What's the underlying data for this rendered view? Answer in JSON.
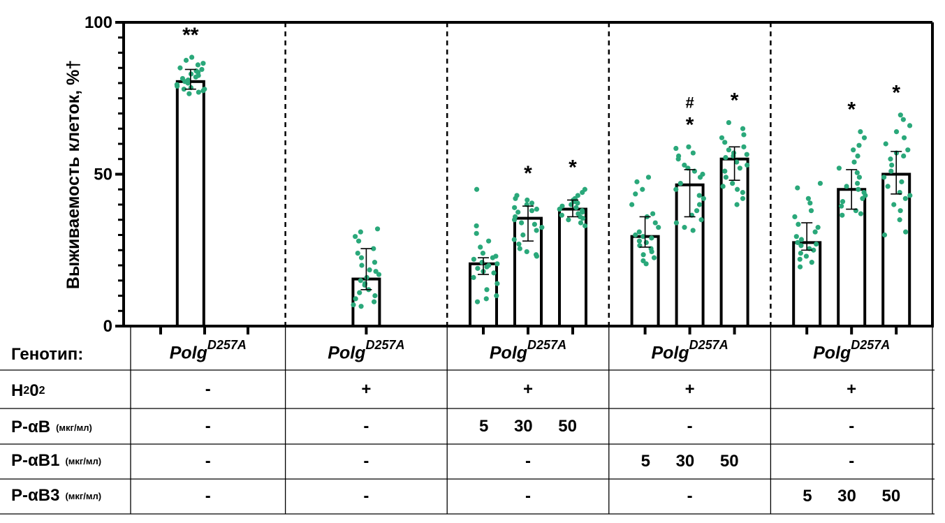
{
  "chart_data": {
    "type": "bar",
    "ylabel": "Выживаемость клеток, %†",
    "ylim": [
      0,
      100
    ],
    "yticks": [
      0,
      50,
      100
    ],
    "grid": false,
    "point_color": "#2aa87a",
    "groups": [
      {
        "genotype": "Polg",
        "genotype_sup": "D257A",
        "h2o2": "-",
        "p_ab": "-",
        "p_ab1": "-",
        "p_ab3": "-",
        "bars": [
          {
            "value": 80.5,
            "err_low": 78,
            "err_high": 84.5,
            "annot": "**",
            "points": [
              88.5,
              87.5,
              86.5,
              86,
              85,
              84.5,
              84,
              83.5,
              83,
              82.5,
              82,
              81.5,
              81,
              80.5,
              80,
              79.5,
              79,
              78.5,
              78,
              78,
              77.5,
              77,
              76.5
            ]
          }
        ]
      },
      {
        "genotype": "Polg",
        "genotype_sup": "D257A",
        "h2o2": "+",
        "p_ab": "-",
        "p_ab1": "-",
        "p_ab3": "-",
        "bars": [
          {
            "value": 15.5,
            "err_low": 12,
            "err_high": 25.5,
            "annot": "",
            "points": [
              32,
              31,
              29.5,
              28,
              25.5,
              24,
              22.5,
              21,
              20,
              18.5,
              18,
              17,
              16,
              15,
              14,
              13.5,
              12,
              11,
              10,
              9,
              8,
              7,
              6.5
            ]
          }
        ]
      },
      {
        "genotype": "Polg",
        "genotype_sup": "D257A",
        "h2o2": "+",
        "p_ab": "5   30   50",
        "p_ab1": "-",
        "p_ab3": "-",
        "bars": [
          {
            "value": 20.5,
            "err_low": 17,
            "err_high": 22.5,
            "annot": "",
            "points": [
              45,
              33,
              30.5,
              28,
              26,
              24,
              23,
              22.5,
              22,
              21,
              20.5,
              20,
              19.5,
              19,
              18,
              17.5,
              16,
              14,
              12,
              10,
              9,
              8
            ]
          },
          {
            "value": 35.5,
            "err_low": 28,
            "err_high": 39.5,
            "annot": "*",
            "points": [
              43,
              42,
              41.5,
              40.5,
              40,
              39,
              38.5,
              38,
              37.5,
              36,
              35,
              34,
              33.5,
              32.5,
              31.5,
              30,
              28.5,
              27,
              25.5,
              24.5,
              23.5,
              23
            ]
          },
          {
            "value": 38.5,
            "err_low": 36,
            "err_high": 41.5,
            "annot": "*",
            "points": [
              45,
              44,
              43,
              42,
              41.5,
              41,
              40.5,
              40,
              39.5,
              39,
              38.5,
              38,
              37.5,
              37,
              36.5,
              36,
              35.5,
              35,
              34,
              33
            ]
          }
        ]
      },
      {
        "genotype": "Polg",
        "genotype_sup": "D257A",
        "h2o2": "+",
        "p_ab": "-",
        "p_ab1": "5   30   50",
        "p_ab3": "-",
        "bars": [
          {
            "value": 29.5,
            "err_low": 26,
            "err_high": 36,
            "annot": "",
            "points": [
              49,
              47.5,
              45,
              43.5,
              40,
              37,
              36,
              34,
              32.5,
              31,
              30,
              29.5,
              29,
              28,
              27.5,
              26.5,
              25.5,
              24.5,
              23.5,
              22.5,
              21.5,
              20.5
            ]
          },
          {
            "value": 46.5,
            "err_low": 36,
            "err_high": 51.5,
            "annot": "#*",
            "points": [
              59,
              58.5,
              57,
              56,
              55,
              53,
              52,
              51,
              50,
              49,
              47,
              45,
              43,
              42,
              40,
              38,
              36.5,
              35,
              34,
              32.5,
              31.5
            ]
          },
          {
            "value": 55,
            "err_low": 48,
            "err_high": 59,
            "annot": "*",
            "points": [
              67,
              65,
              63,
              62,
              60.5,
              59,
              58,
              57,
              56.5,
              56,
              55.5,
              54,
              53,
              52,
              51,
              49,
              47,
              46,
              45,
              44,
              42,
              40
            ]
          }
        ]
      },
      {
        "genotype": "Polg",
        "genotype_sup": "D257A",
        "h2o2": "+",
        "p_ab": "-",
        "p_ab1": "-",
        "p_ab3": "5   30   50",
        "bars": [
          {
            "value": 27.5,
            "err_low": 25,
            "err_high": 34,
            "annot": "",
            "points": [
              47,
              45.5,
              42,
              40.5,
              38,
              36,
              33.5,
              32.5,
              31,
              29.5,
              28.5,
              27.5,
              27,
              26.5,
              25.5,
              25,
              24,
              23,
              22,
              21,
              19.5
            ]
          },
          {
            "value": 45,
            "err_low": 38.5,
            "err_high": 51.5,
            "annot": "*",
            "points": [
              64,
              62,
              59.5,
              58,
              56,
              54,
              52,
              50.5,
              49,
              47,
              46,
              45,
              44,
              43,
              42,
              41,
              39.5,
              38,
              37,
              36.5
            ]
          },
          {
            "value": 50,
            "err_low": 43.5,
            "err_high": 57.5,
            "annot": "*",
            "points": [
              69.5,
              68,
              66,
              64,
              62,
              60,
              58,
              57,
              56,
              55,
              53,
              51,
              49,
              47.5,
              46,
              44,
              43,
              42,
              40,
              38,
              35,
              31,
              30
            ]
          }
        ]
      }
    ]
  },
  "table": {
    "row_labels": {
      "genotype": "Генотип:",
      "h2o2_main": "H",
      "h2o2_sub1": "2",
      "h2o2_mid": "0",
      "h2o2_sub2": "2",
      "p_ab": "P-αB",
      "p_ab1": "P-αB1",
      "p_ab3": "P-αB3",
      "unit": "(мкг/мл)"
    }
  }
}
